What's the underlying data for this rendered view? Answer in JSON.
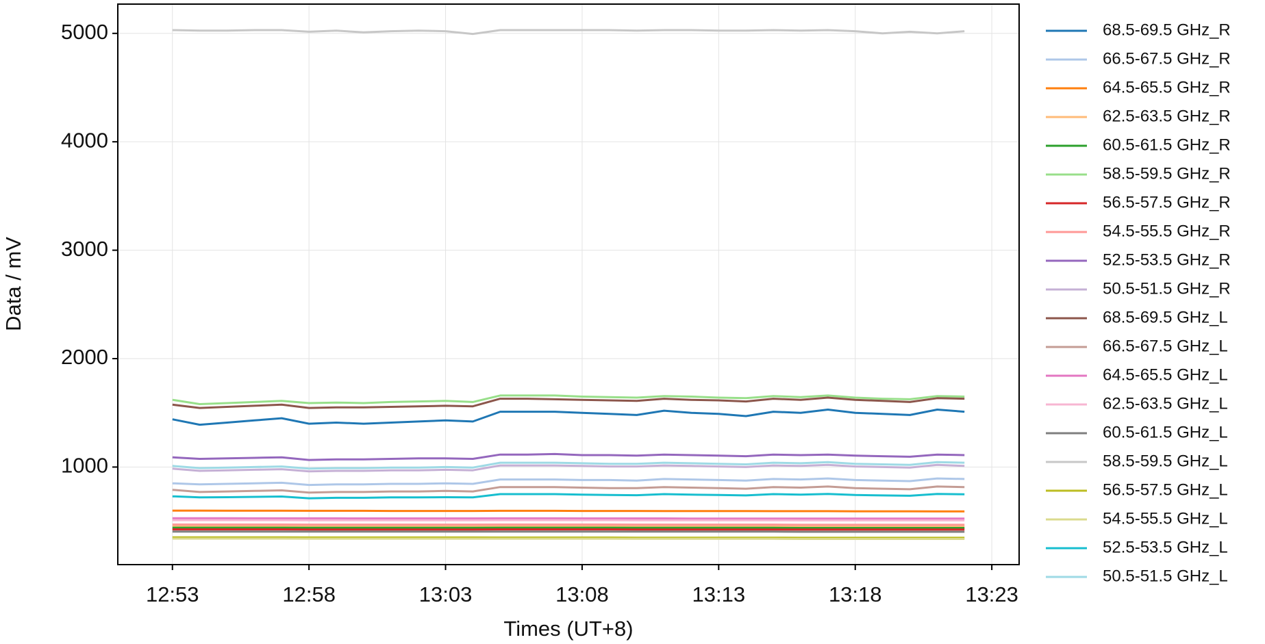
{
  "chart_data": {
    "type": "line",
    "x_label": "Times (UT+8)",
    "y_label": "Data / mV",
    "x": [
      "12:53",
      "12:54",
      "12:55",
      "12:56",
      "12:57",
      "12:58",
      "12:59",
      "13:00",
      "13:01",
      "13:02",
      "13:03",
      "13:04",
      "13:05",
      "13:06",
      "13:07",
      "13:08",
      "13:09",
      "13:10",
      "13:11",
      "13:12",
      "13:13",
      "13:14",
      "13:15",
      "13:16",
      "13:17",
      "13:18",
      "13:19",
      "13:20",
      "13:21",
      "13:22"
    ],
    "xlim": [
      "12:51",
      "13:24"
    ],
    "xticks": [
      "12:53",
      "12:58",
      "13:03",
      "13:08",
      "13:13",
      "13:18",
      "13:23"
    ],
    "ylim": [
      100,
      5270
    ],
    "yticks": [
      1000,
      2000,
      3000,
      4000,
      5000
    ],
    "grid": true,
    "legend": "outside-right",
    "series": [
      {
        "name": "68.5-69.5 GHz_R",
        "color": "#1f77b4",
        "values": [
          1440,
          1390,
          1410,
          1430,
          1450,
          1400,
          1410,
          1400,
          1410,
          1420,
          1430,
          1420,
          1510,
          1510,
          1510,
          1500,
          1490,
          1480,
          1520,
          1500,
          1490,
          1470,
          1510,
          1500,
          1530,
          1500,
          1490,
          1480,
          1530,
          1510
        ]
      },
      {
        "name": "66.5-67.5 GHz_R",
        "color": "#aec7e8",
        "values": [
          850,
          840,
          845,
          850,
          855,
          835,
          840,
          840,
          845,
          845,
          850,
          845,
          885,
          885,
          885,
          880,
          880,
          875,
          890,
          885,
          880,
          875,
          890,
          885,
          895,
          880,
          875,
          870,
          895,
          890
        ]
      },
      {
        "name": "64.5-65.5 GHz_R",
        "color": "#ff7f0e",
        "values": [
          598,
          598,
          597,
          597,
          597,
          596,
          596,
          596,
          595,
          595,
          595,
          595,
          596,
          596,
          596,
          595,
          595,
          595,
          594,
          594,
          594,
          594,
          593,
          593,
          593,
          592,
          592,
          592,
          591,
          591
        ]
      },
      {
        "name": "62.5-63.5 GHz_R",
        "color": "#ffbb78",
        "values": [
          455,
          455,
          455,
          455,
          455,
          454,
          454,
          454,
          454,
          454,
          454,
          454,
          455,
          455,
          455,
          455,
          455,
          454,
          454,
          454,
          454,
          454,
          454,
          453,
          453,
          453,
          453,
          453,
          453,
          453
        ]
      },
      {
        "name": "60.5-61.5 GHz_R",
        "color": "#2ca02c",
        "values": [
          440,
          440,
          440,
          440,
          440,
          439,
          439,
          439,
          439,
          439,
          439,
          439,
          440,
          440,
          440,
          440,
          440,
          439,
          439,
          439,
          439,
          439,
          439,
          438,
          438,
          438,
          438,
          438,
          438,
          438
        ]
      },
      {
        "name": "58.5-59.5 GHz_R",
        "color": "#98df8a",
        "values": [
          1620,
          1580,
          1590,
          1600,
          1610,
          1590,
          1595,
          1590,
          1600,
          1605,
          1610,
          1600,
          1660,
          1660,
          1660,
          1650,
          1645,
          1640,
          1655,
          1650,
          1640,
          1635,
          1655,
          1645,
          1660,
          1640,
          1630,
          1625,
          1655,
          1650
        ]
      },
      {
        "name": "56.5-57.5 GHz_R",
        "color": "#d62728",
        "values": [
          425,
          425,
          425,
          425,
          425,
          424,
          424,
          424,
          424,
          424,
          424,
          424,
          425,
          425,
          425,
          425,
          425,
          424,
          424,
          424,
          424,
          424,
          424,
          423,
          423,
          423,
          423,
          423,
          423,
          423
        ]
      },
      {
        "name": "54.5-55.5 GHz_R",
        "color": "#ff9896",
        "values": [
          470,
          470,
          470,
          470,
          470,
          469,
          469,
          469,
          469,
          469,
          469,
          469,
          470,
          470,
          470,
          470,
          470,
          469,
          469,
          469,
          469,
          469,
          469,
          468,
          468,
          468,
          468,
          468,
          468,
          468
        ]
      },
      {
        "name": "52.5-53.5 GHz_R",
        "color": "#9467bd",
        "values": [
          1090,
          1075,
          1080,
          1085,
          1090,
          1065,
          1070,
          1070,
          1075,
          1080,
          1080,
          1075,
          1115,
          1115,
          1120,
          1110,
          1110,
          1105,
          1115,
          1110,
          1105,
          1100,
          1115,
          1110,
          1115,
          1105,
          1100,
          1095,
          1115,
          1110
        ]
      },
      {
        "name": "50.5-51.5 GHz_R",
        "color": "#c5b0d5",
        "values": [
          985,
          965,
          970,
          975,
          980,
          960,
          965,
          965,
          970,
          970,
          975,
          970,
          1015,
          1015,
          1015,
          1010,
          1005,
          1005,
          1015,
          1010,
          1005,
          1000,
          1015,
          1010,
          1020,
          1005,
          1000,
          995,
          1020,
          1010
        ]
      },
      {
        "name": "68.5-69.5 GHz_L",
        "color": "#8c564b",
        "values": [
          1575,
          1545,
          1555,
          1565,
          1575,
          1545,
          1550,
          1550,
          1555,
          1560,
          1565,
          1560,
          1630,
          1630,
          1625,
          1620,
          1615,
          1610,
          1630,
          1620,
          1615,
          1605,
          1630,
          1620,
          1640,
          1620,
          1610,
          1600,
          1635,
          1630
        ]
      },
      {
        "name": "66.5-67.5 GHz_L",
        "color": "#c49c94",
        "values": [
          790,
          770,
          775,
          780,
          785,
          765,
          770,
          770,
          775,
          775,
          780,
          775,
          815,
          815,
          815,
          810,
          805,
          805,
          815,
          810,
          805,
          800,
          815,
          810,
          820,
          805,
          800,
          795,
          820,
          815
        ]
      },
      {
        "name": "64.5-65.5 GHz_L",
        "color": "#e377c2",
        "values": [
          528,
          528,
          528,
          527,
          527,
          527,
          527,
          526,
          526,
          526,
          526,
          526,
          527,
          527,
          527,
          526,
          526,
          526,
          526,
          525,
          525,
          525,
          525,
          525,
          524,
          524,
          524,
          524,
          524,
          524
        ]
      },
      {
        "name": "62.5-63.5 GHz_L",
        "color": "#f7b6d2",
        "values": [
          510,
          510,
          510,
          510,
          510,
          509,
          509,
          509,
          509,
          509,
          509,
          509,
          510,
          510,
          510,
          510,
          510,
          509,
          509,
          509,
          509,
          509,
          509,
          508,
          508,
          508,
          508,
          508,
          508,
          508
        ]
      },
      {
        "name": "60.5-61.5 GHz_L",
        "color": "#7f7f7f",
        "values": [
          405,
          405,
          405,
          405,
          405,
          404,
          404,
          404,
          404,
          404,
          404,
          404,
          405,
          405,
          405,
          405,
          405,
          404,
          404,
          404,
          404,
          404,
          404,
          403,
          403,
          403,
          403,
          403,
          403,
          403
        ]
      },
      {
        "name": "58.5-59.5 GHz_L",
        "color": "#c7c7c7",
        "values": [
          5030,
          5025,
          5025,
          5030,
          5030,
          5015,
          5025,
          5010,
          5020,
          5025,
          5020,
          4995,
          5030,
          5030,
          5030,
          5030,
          5030,
          5025,
          5030,
          5030,
          5025,
          5025,
          5030,
          5025,
          5030,
          5020,
          5000,
          5015,
          5000,
          5020
        ]
      },
      {
        "name": "56.5-57.5 GHz_L",
        "color": "#bcbd22",
        "values": [
          352,
          352,
          352,
          352,
          352,
          351,
          351,
          351,
          351,
          351,
          351,
          351,
          350,
          350,
          350,
          350,
          350,
          349,
          349,
          349,
          349,
          349,
          349,
          348,
          348,
          348,
          348,
          348,
          348,
          348
        ]
      },
      {
        "name": "54.5-55.5 GHz_L",
        "color": "#dbdb8d",
        "values": [
          340,
          340,
          340,
          340,
          340,
          339,
          339,
          339,
          339,
          339,
          339,
          339,
          339,
          339,
          339,
          339,
          339,
          338,
          338,
          338,
          338,
          338,
          338,
          337,
          337,
          337,
          337,
          337,
          337,
          337
        ]
      },
      {
        "name": "52.5-53.5 GHz_L",
        "color": "#17becf",
        "values": [
          730,
          720,
          722,
          725,
          728,
          712,
          716,
          716,
          720,
          720,
          722,
          720,
          750,
          750,
          750,
          745,
          742,
          740,
          750,
          745,
          742,
          738,
          750,
          745,
          752,
          742,
          738,
          735,
          752,
          748
        ]
      },
      {
        "name": "50.5-51.5 GHz_L",
        "color": "#9edae5",
        "values": [
          1010,
          990,
          995,
          1000,
          1005,
          985,
          990,
          990,
          995,
          995,
          1000,
          995,
          1040,
          1040,
          1040,
          1035,
          1030,
          1030,
          1040,
          1035,
          1030,
          1025,
          1040,
          1035,
          1045,
          1030,
          1025,
          1020,
          1045,
          1040
        ]
      }
    ]
  }
}
